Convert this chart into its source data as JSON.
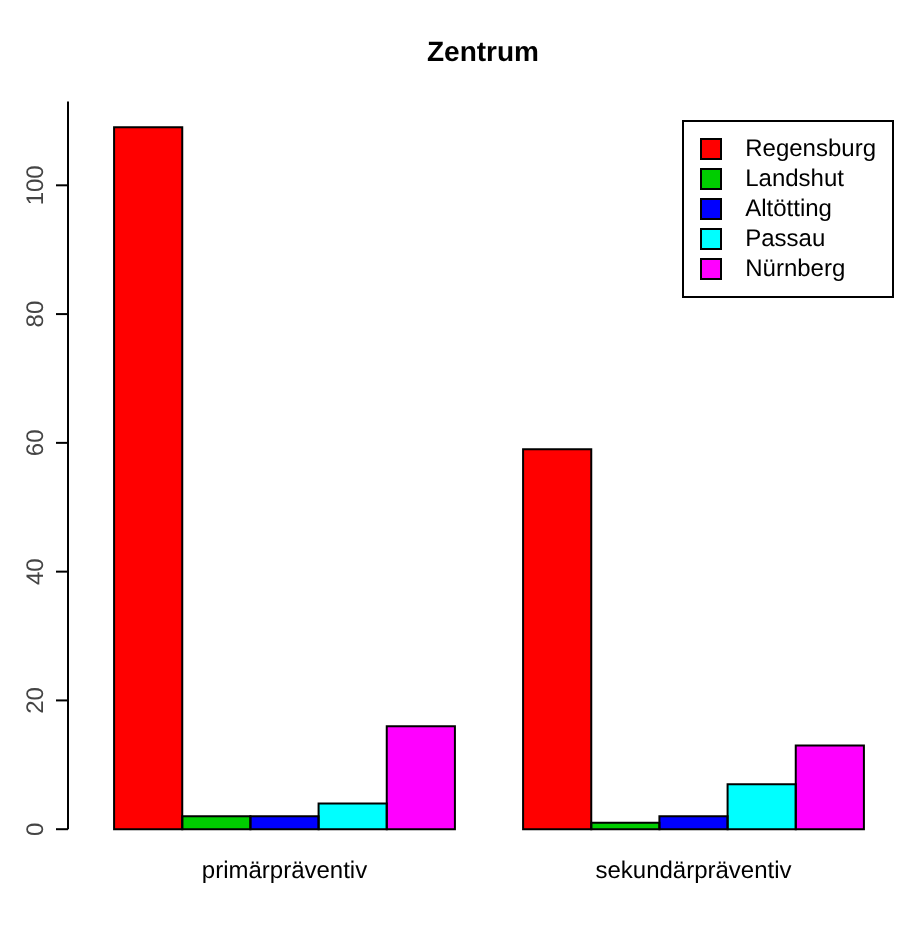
{
  "chart_data": {
    "type": "bar",
    "title": "Zentrum",
    "categories": [
      "primärpräventiv",
      "sekundärpräventiv"
    ],
    "series": [
      {
        "name": "Regensburg",
        "color": "#ff0000",
        "values": [
          109,
          59
        ]
      },
      {
        "name": "Landshut",
        "color": "#00cd00",
        "values": [
          2,
          1
        ]
      },
      {
        "name": "Altötting",
        "color": "#0000ff",
        "values": [
          2,
          2
        ]
      },
      {
        "name": "Passau",
        "color": "#00ffff",
        "values": [
          4,
          7
        ]
      },
      {
        "name": "Nürnberg",
        "color": "#ff00ff",
        "values": [
          16,
          13
        ]
      }
    ],
    "ylim": [
      0,
      113
    ],
    "yticks": [
      0,
      20,
      40,
      60,
      80,
      100
    ],
    "grid": false,
    "legend": "top right"
  }
}
